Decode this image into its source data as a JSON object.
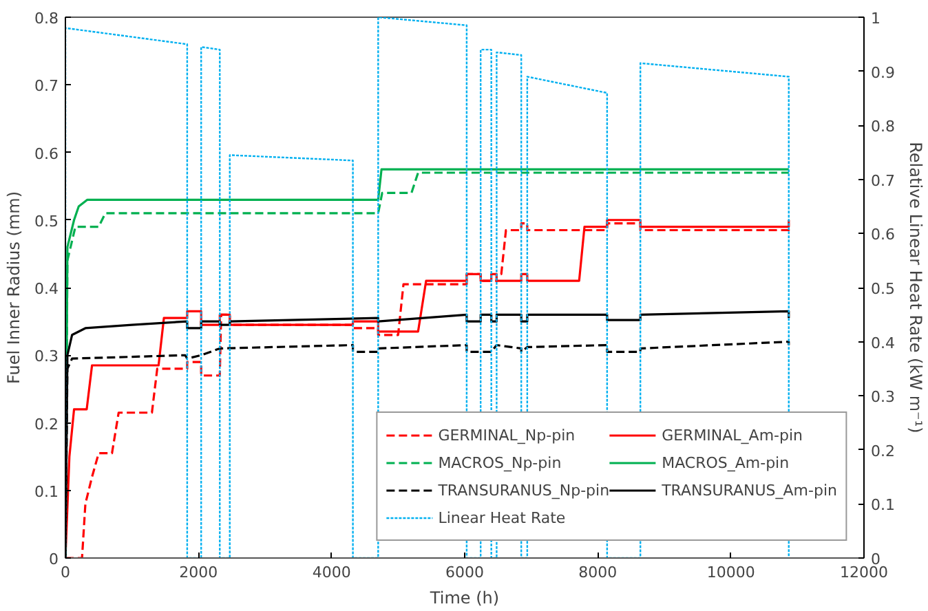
{
  "chart_data": {
    "type": "line",
    "xlabel": "Time (h)",
    "ylabel": "Fuel Inner Radius (mm)",
    "y2label": "Relative Linear Heat Rate (kW m⁻¹)",
    "xlim": [
      0,
      12000
    ],
    "xticks": [
      0,
      2000,
      4000,
      6000,
      8000,
      10000,
      12000
    ],
    "ylim": [
      0,
      0.8
    ],
    "yticks": [
      0,
      0.1,
      0.2,
      0.3,
      0.4,
      0.5,
      0.6,
      0.7,
      0.8
    ],
    "y2lim": [
      0,
      1
    ],
    "y2ticks": [
      0,
      0.1,
      0.2,
      0.3,
      0.4,
      0.5,
      0.6,
      0.7,
      0.8,
      0.9,
      1
    ],
    "grid": false,
    "legend": "bottom right",
    "marker": "none",
    "series": [
      {
        "name": "GERMINAL_Np-pin",
        "color": "#ff0000",
        "line_style": "dashed",
        "x": [
          0,
          250,
          300,
          400,
          500,
          700,
          800,
          1300,
          1380,
          1830,
          1830,
          2040,
          2040,
          2320,
          2340,
          2470,
          2470,
          4320,
          4320,
          4700,
          4700,
          5000,
          5080,
          6030,
          6030,
          6240,
          6240,
          6480,
          6480,
          6550,
          6620,
          6850,
          6850,
          6940,
          6940,
          8140,
          8140,
          8640,
          8640,
          10870,
          10870
        ],
        "values": [
          0,
          0,
          0.08,
          0.12,
          0.155,
          0.155,
          0.215,
          0.215,
          0.28,
          0.28,
          0.29,
          0.29,
          0.27,
          0.27,
          0.36,
          0.36,
          0.345,
          0.345,
          0.34,
          0.34,
          0.33,
          0.33,
          0.405,
          0.405,
          0.42,
          0.42,
          0.41,
          0.41,
          0.42,
          0.42,
          0.485,
          0.485,
          0.495,
          0.495,
          0.485,
          0.485,
          0.495,
          0.495,
          0.485,
          0.485,
          0.49
        ]
      },
      {
        "name": "GERMINAL_Am-pin",
        "color": "#ff0000",
        "line_style": "solid",
        "x": [
          0,
          60,
          130,
          320,
          400,
          1400,
          1480,
          1830,
          1830,
          2040,
          2040,
          2320,
          2320,
          2470,
          2470,
          4320,
          4320,
          4700,
          4700,
          5300,
          5420,
          6030,
          6030,
          6240,
          6240,
          6400,
          6400,
          6480,
          6480,
          6850,
          6850,
          6940,
          6940,
          7720,
          7800,
          8140,
          8140,
          8640,
          8640,
          10870,
          10870
        ],
        "values": [
          0,
          0.15,
          0.22,
          0.22,
          0.285,
          0.285,
          0.355,
          0.355,
          0.365,
          0.365,
          0.345,
          0.345,
          0.36,
          0.36,
          0.345,
          0.345,
          0.35,
          0.35,
          0.335,
          0.335,
          0.41,
          0.41,
          0.42,
          0.42,
          0.41,
          0.41,
          0.42,
          0.42,
          0.41,
          0.41,
          0.42,
          0.42,
          0.41,
          0.41,
          0.49,
          0.49,
          0.5,
          0.5,
          0.49,
          0.49,
          0.5
        ]
      },
      {
        "name": "MACROS_Np-pin",
        "color": "#00b050",
        "line_style": "dashed",
        "x": [
          0,
          30,
          150,
          500,
          600,
          4700,
          4760,
          5200,
          5300,
          10870
        ],
        "values": [
          0,
          0.44,
          0.49,
          0.49,
          0.51,
          0.51,
          0.54,
          0.54,
          0.57,
          0.57
        ]
      },
      {
        "name": "MACROS_Am-pin",
        "color": "#00b050",
        "line_style": "solid",
        "x": [
          0,
          30,
          130,
          200,
          330,
          4700,
          4750,
          10870
        ],
        "values": [
          0,
          0.46,
          0.5,
          0.52,
          0.53,
          0.53,
          0.575,
          0.575
        ]
      },
      {
        "name": "TRANSURANUS_Np-pin",
        "color": "#000000",
        "line_style": "dashed",
        "x": [
          0,
          30,
          100,
          1800,
          1830,
          2040,
          2320,
          4320,
          4320,
          4700,
          4700,
          6030,
          6030,
          6400,
          6480,
          6850,
          6850,
          6940,
          8140,
          8140,
          8640,
          8640,
          10870,
          10870
        ],
        "values": [
          0,
          0.28,
          0.295,
          0.3,
          0.295,
          0.3,
          0.31,
          0.315,
          0.305,
          0.305,
          0.31,
          0.315,
          0.305,
          0.305,
          0.315,
          0.31,
          0.305,
          0.312,
          0.315,
          0.305,
          0.305,
          0.31,
          0.32,
          0.315
        ]
      },
      {
        "name": "TRANSURANUS_Am-pin",
        "color": "#000000",
        "line_style": "solid",
        "x": [
          0,
          30,
          100,
          300,
          1000,
          1830,
          1830,
          2040,
          2040,
          2320,
          2320,
          2470,
          2470,
          4700,
          4700,
          6030,
          6030,
          6240,
          6240,
          6400,
          6400,
          6480,
          6480,
          6850,
          6850,
          6940,
          6940,
          8140,
          8140,
          8640,
          8640,
          10870,
          10870
        ],
        "values": [
          0,
          0.3,
          0.33,
          0.34,
          0.345,
          0.35,
          0.34,
          0.34,
          0.35,
          0.35,
          0.345,
          0.345,
          0.35,
          0.355,
          0.35,
          0.36,
          0.35,
          0.35,
          0.36,
          0.36,
          0.35,
          0.35,
          0.36,
          0.36,
          0.35,
          0.35,
          0.36,
          0.36,
          0.352,
          0.352,
          0.36,
          0.365,
          0.355
        ]
      },
      {
        "name": "Linear Heat Rate",
        "color": "#00b0f0",
        "line_style": "dotted",
        "axis": "y2",
        "x": [
          0,
          0,
          1830,
          1830,
          2040,
          2040,
          2320,
          2320,
          2470,
          2470,
          4320,
          4320,
          4700,
          4700,
          6030,
          6030,
          6240,
          6240,
          6400,
          6400,
          6480,
          6480,
          6850,
          6850,
          6940,
          6940,
          8140,
          8140,
          8640,
          8640,
          10870,
          10870
        ],
        "values": [
          0,
          0.98,
          0.95,
          0,
          0,
          0.945,
          0.94,
          0,
          0,
          0.745,
          0.735,
          0,
          0,
          1.0,
          0.985,
          0,
          0,
          0.94,
          0.94,
          0,
          0,
          0.935,
          0.93,
          0,
          0,
          0.89,
          0.86,
          0,
          0,
          0.915,
          0.89,
          0
        ]
      }
    ]
  }
}
